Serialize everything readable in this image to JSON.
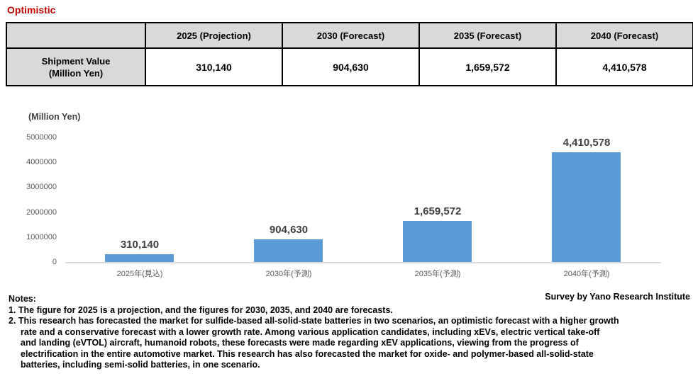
{
  "scenario_label": "Optimistic",
  "table": {
    "row_header": {
      "line1": "Shipment Value",
      "line2": "(Million Yen)"
    },
    "col_headers": [
      "2025 (Projection)",
      "2030 (Forecast)",
      "2035 (Forecast)",
      "2040 (Forecast)"
    ],
    "values": [
      "310,140",
      "904,630",
      "1,659,572",
      "4,410,578"
    ]
  },
  "chart_data": {
    "type": "bar",
    "title": "",
    "unit_label": "(Million Yen)",
    "categories": [
      "2025年(見込)",
      "2030年(予測)",
      "2035年(予測)",
      "2040年(予測)"
    ],
    "values": [
      310140,
      904630,
      1659572,
      4410578
    ],
    "data_labels": [
      "310,140",
      "904,630",
      "1,659,572",
      "4,410,578"
    ],
    "xlabel": "",
    "ylabel": "(Million Yen)",
    "ylim": [
      0,
      5000000
    ],
    "ytick_interval": 1000000,
    "ytick_labels": [
      "5000000",
      "4000000",
      "3000000",
      "2000000",
      "1000000",
      "0"
    ],
    "grid": false,
    "legend_position": "none",
    "bar_color": "#5B9BD5"
  },
  "survey_credit": "Survey by Yano Research Institute",
  "notes": {
    "heading": "Notes:",
    "lines": [
      "1. The figure for 2025 is a projection, and the figures for 2030, 2035, and 2040 are forecasts.",
      "2. This research has forecasted the market for sulfide-based all-solid-state batteries in two scenarios, an optimistic forecast with a higher growth",
      "rate and a conservative forecast with a lower growth rate. Among various application candidates, including xEVs, electric vertical take-off",
      "and landing (eVTOL) aircraft, humanoid robots, these forecasts were made regarding xEV applications, viewing from the progress of",
      "electrification in the entire automotive market. This research has also forecasted the market for oxide- and polymer-based all-solid-state",
      "batteries, including semi-solid batteries, in one scenario."
    ]
  },
  "colors": {
    "accent_red": "#C00000",
    "bar_blue": "#5B9BD5",
    "table_header_bg": "#D9D9D9",
    "axis_text": "#595959",
    "data_label_text": "#404040",
    "axis_line": "#D9D9D9"
  }
}
